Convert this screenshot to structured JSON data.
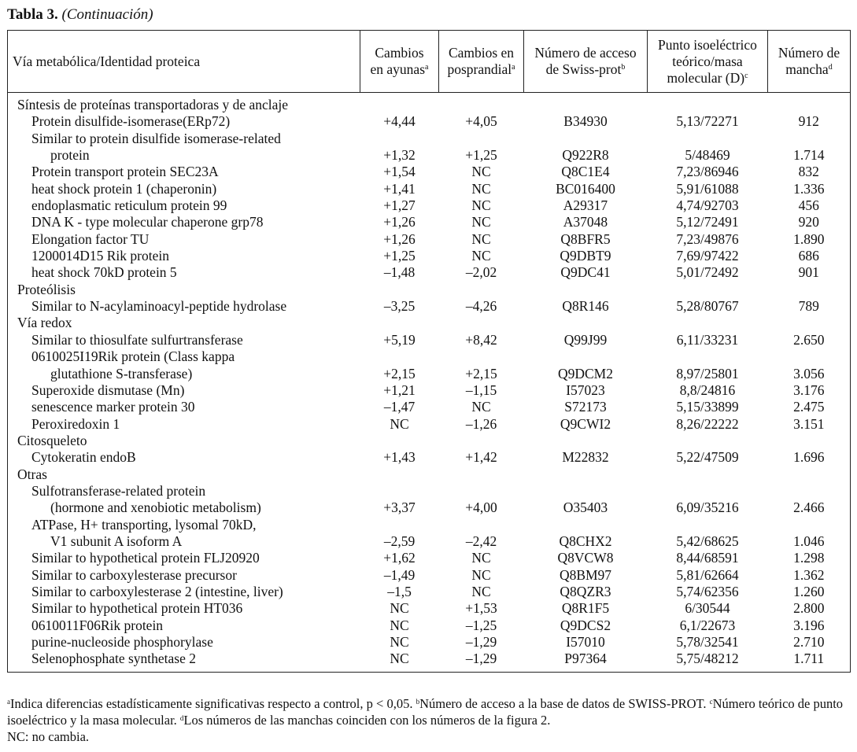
{
  "title": {
    "label": "Tabla 3.",
    "subtitle": "(Continuación)"
  },
  "headers": [
    {
      "text": "Vía metabólica/Identidad proteica",
      "sup": ""
    },
    {
      "text": "Cambios en ayunas",
      "sup": "a"
    },
    {
      "text": "Cambios en posprandial",
      "sup": "a"
    },
    {
      "text": "Número de acceso de Swiss-prot",
      "sup": "b"
    },
    {
      "text": "Punto isoeléctrico teórico/masa molecular (D)",
      "sup": "c"
    },
    {
      "text": "Número de mancha",
      "sup": "d"
    }
  ],
  "sections": [
    {
      "name": "Síntesis de proteínas transportadoras y de anclaje",
      "rows": [
        {
          "lines": [
            "Protein disulfide-isomerase(ERp72)"
          ],
          "ayunas": "+4,44",
          "posprandial": "+4,05",
          "acceso": "B34930",
          "pi_masa": "5,13/72271",
          "mancha": "912"
        },
        {
          "lines": [
            "Similar to protein disulfide isomerase-related",
            "protein"
          ],
          "ayunas": "+1,32",
          "posprandial": "+1,25",
          "acceso": "Q922R8",
          "pi_masa": "5/48469",
          "mancha": "1.714"
        },
        {
          "lines": [
            "Protein transport protein SEC23A"
          ],
          "ayunas": "+1,54",
          "posprandial": "NC",
          "acceso": "Q8C1E4",
          "pi_masa": "7,23/86946",
          "mancha": "832"
        },
        {
          "lines": [
            "heat shock protein 1 (chaperonin)"
          ],
          "ayunas": "+1,41",
          "posprandial": "NC",
          "acceso": "BC016400",
          "pi_masa": "5,91/61088",
          "mancha": "1.336"
        },
        {
          "lines": [
            "endoplasmatic reticulum protein 99"
          ],
          "ayunas": "+1,27",
          "posprandial": "NC",
          "acceso": "A29317",
          "pi_masa": "4,74/92703",
          "mancha": "456"
        },
        {
          "lines": [
            "DNA K - type molecular chaperone grp78"
          ],
          "ayunas": "+1,26",
          "posprandial": "NC",
          "acceso": "A37048",
          "pi_masa": "5,12/72491",
          "mancha": "920"
        },
        {
          "lines": [
            "Elongation factor TU"
          ],
          "ayunas": "+1,26",
          "posprandial": "NC",
          "acceso": "Q8BFR5",
          "pi_masa": "7,23/49876",
          "mancha": "1.890"
        },
        {
          "lines": [
            "1200014D15 Rik protein"
          ],
          "ayunas": "+1,25",
          "posprandial": "NC",
          "acceso": "Q9DBT9",
          "pi_masa": "7,69/97422",
          "mancha": "686"
        },
        {
          "lines": [
            "heat shock 70kD protein 5"
          ],
          "ayunas": "–1,48",
          "posprandial": "–2,02",
          "acceso": "Q9DC41",
          "pi_masa": "5,01/72492",
          "mancha": "901"
        }
      ]
    },
    {
      "name": "Proteólisis",
      "rows": [
        {
          "lines": [
            "Similar to N-acylaminoacyl-peptide hydrolase"
          ],
          "ayunas": "–3,25",
          "posprandial": "–4,26",
          "acceso": "Q8R146",
          "pi_masa": "5,28/80767",
          "mancha": "789"
        }
      ]
    },
    {
      "name": "Vía redox",
      "rows": [
        {
          "lines": [
            "Similar to thiosulfate sulfurtransferase"
          ],
          "ayunas": "+5,19",
          "posprandial": "+8,42",
          "acceso": "Q99J99",
          "pi_masa": "6,11/33231",
          "mancha": "2.650"
        },
        {
          "lines": [
            "0610025I19Rik protein (Class kappa",
            "glutathione S-transferase)"
          ],
          "ayunas": "+2,15",
          "posprandial": "+2,15",
          "acceso": "Q9DCM2",
          "pi_masa": "8,97/25801",
          "mancha": "3.056"
        },
        {
          "lines": [
            "Superoxide dismutase (Mn)"
          ],
          "ayunas": "+1,21",
          "posprandial": "–1,15",
          "acceso": "I57023",
          "pi_masa": "8,8/24816",
          "mancha": "3.176"
        },
        {
          "lines": [
            "senescence marker protein 30"
          ],
          "ayunas": "–1,47",
          "posprandial": "NC",
          "acceso": "S72173",
          "pi_masa": "5,15/33899",
          "mancha": "2.475"
        },
        {
          "lines": [
            "Peroxiredoxin 1"
          ],
          "ayunas": "NC",
          "posprandial": "–1,26",
          "acceso": "Q9CWI2",
          "pi_masa": "8,26/22222",
          "mancha": "3.151"
        }
      ]
    },
    {
      "name": "Citosqueleto",
      "rows": [
        {
          "lines": [
            "Cytokeratin endoB"
          ],
          "ayunas": "+1,43",
          "posprandial": "+1,42",
          "acceso": "M22832",
          "pi_masa": "5,22/47509",
          "mancha": "1.696"
        }
      ]
    },
    {
      "name": "Otras",
      "rows": [
        {
          "lines": [
            "Sulfotransferase-related protein",
            "(hormone and xenobiotic metabolism)"
          ],
          "ayunas": "+3,37",
          "posprandial": "+4,00",
          "acceso": "O35403",
          "pi_masa": "6,09/35216",
          "mancha": "2.466"
        },
        {
          "lines": [
            "ATPase, H+ transporting, lysomal 70kD,",
            "V1 subunit A isoform A"
          ],
          "ayunas": "–2,59",
          "posprandial": "–2,42",
          "acceso": "Q8CHX2",
          "pi_masa": "5,42/68625",
          "mancha": "1.046"
        },
        {
          "lines": [
            "Similar to hypothetical protein FLJ20920"
          ],
          "ayunas": "+1,62",
          "posprandial": "NC",
          "acceso": "Q8VCW8",
          "pi_masa": "8,44/68591",
          "mancha": "1.298"
        },
        {
          "lines": [
            "Similar to carboxylesterase precursor"
          ],
          "ayunas": "–1,49",
          "posprandial": "NC",
          "acceso": "Q8BM97",
          "pi_masa": "5,81/62664",
          "mancha": "1.362"
        },
        {
          "lines": [
            "Similar to carboxylesterase 2 (intestine, liver)"
          ],
          "ayunas": "–1,5",
          "posprandial": "NC",
          "acceso": "Q8QZR3",
          "pi_masa": "5,74/62356",
          "mancha": "1.260"
        },
        {
          "lines": [
            "Similar to hypothetical protein HT036"
          ],
          "ayunas": "NC",
          "posprandial": "+1,53",
          "acceso": "Q8R1F5",
          "pi_masa": "6/30544",
          "mancha": "2.800"
        },
        {
          "lines": [
            "0610011F06Rik protein"
          ],
          "ayunas": "NC",
          "posprandial": "–1,25",
          "acceso": "Q9DCS2",
          "pi_masa": "6,1/22673",
          "mancha": "3.196"
        },
        {
          "lines": [
            "purine-nucleoside phosphorylase"
          ],
          "ayunas": "NC",
          "posprandial": "–1,29",
          "acceso": "I57010",
          "pi_masa": "5,78/32541",
          "mancha": "2.710"
        },
        {
          "lines": [
            "Selenophosphate synthetase 2"
          ],
          "ayunas": "NC",
          "posprandial": "–1,29",
          "acceso": "P97364",
          "pi_masa": "5,75/48212",
          "mancha": "1.711"
        }
      ]
    }
  ],
  "footnotes": {
    "a_sup": "a",
    "a": "Indica diferencias estadísticamente significativas respecto a control, p < 0,05. ",
    "b_sup": "b",
    "b": "Número de acceso a la base de datos de SWISS-PROT. ",
    "c_sup": "c",
    "c": "Número teórico de punto isoeléctrico y la masa molecular. ",
    "d_sup": "d",
    "d": "Los números de las manchas coinciden con los números de la figura 2.",
    "nc": "NC: no cambia."
  }
}
